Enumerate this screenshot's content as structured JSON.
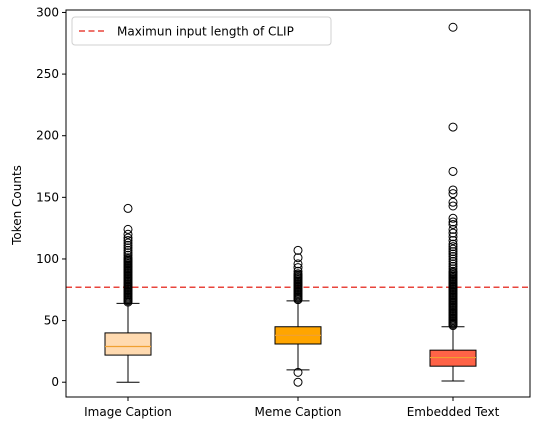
{
  "chart_data": {
    "type": "box",
    "title": "",
    "xlabel": "",
    "ylabel": "Token Counts",
    "ylim": [
      -12,
      302
    ],
    "yticks": [
      0,
      50,
      100,
      150,
      200,
      250,
      300
    ],
    "grid": false,
    "legend": {
      "placement": "top-left",
      "entries": [
        "Maximun input length of CLIP"
      ]
    },
    "reference_line": {
      "label": "Maximun input length of CLIP",
      "y": 77,
      "color": "#e8453c",
      "style": "dashed"
    },
    "categories": [
      "Image Caption",
      "Meme Caption",
      "Embedded Text"
    ],
    "boxes": [
      {
        "name": "Image Caption",
        "color": "#ffdab0",
        "median_color": "#f0a030",
        "whisker_low": 0,
        "q1": 22,
        "median": 29,
        "q3": 40,
        "whisker_high": 64,
        "outliers": [
          65,
          66,
          67,
          68,
          69,
          70,
          71,
          72,
          73,
          74,
          75,
          76,
          77,
          78,
          79,
          80,
          81,
          82,
          83,
          84,
          85,
          86,
          87,
          88,
          89,
          90,
          91,
          92,
          93,
          94,
          95,
          96,
          97,
          98,
          99,
          100,
          101,
          103,
          105,
          107,
          109,
          111,
          113,
          115,
          117,
          120,
          124,
          141
        ]
      },
      {
        "name": "Meme Caption",
        "color": "#ffa500",
        "median_color": "#f0a030",
        "whisker_low": 10,
        "q1": 31,
        "median": 38,
        "q3": 45,
        "whisker_high": 66,
        "outliers": [
          0,
          8,
          67,
          68,
          69,
          70,
          71,
          72,
          73,
          74,
          75,
          76,
          77,
          78,
          79,
          80,
          81,
          82,
          83,
          84,
          85,
          86,
          87,
          88,
          90,
          93,
          96,
          101,
          107
        ]
      },
      {
        "name": "Embedded Text",
        "color": "#ff6347",
        "median_color": "#f0a030",
        "whisker_low": 1,
        "q1": 13,
        "median": 20,
        "q3": 26,
        "whisker_high": 45,
        "outliers": [
          46,
          47,
          48,
          49,
          50,
          51,
          52,
          53,
          54,
          55,
          56,
          57,
          58,
          59,
          60,
          61,
          62,
          63,
          64,
          65,
          66,
          67,
          68,
          69,
          70,
          71,
          72,
          73,
          74,
          75,
          76,
          77,
          78,
          79,
          80,
          81,
          82,
          83,
          84,
          85,
          86,
          87,
          88,
          89,
          90,
          92,
          94,
          96,
          98,
          100,
          102,
          104,
          106,
          108,
          110,
          112,
          115,
          118,
          121,
          124,
          128,
          130,
          133,
          143,
          146,
          153,
          156,
          171,
          207,
          288
        ]
      }
    ]
  }
}
